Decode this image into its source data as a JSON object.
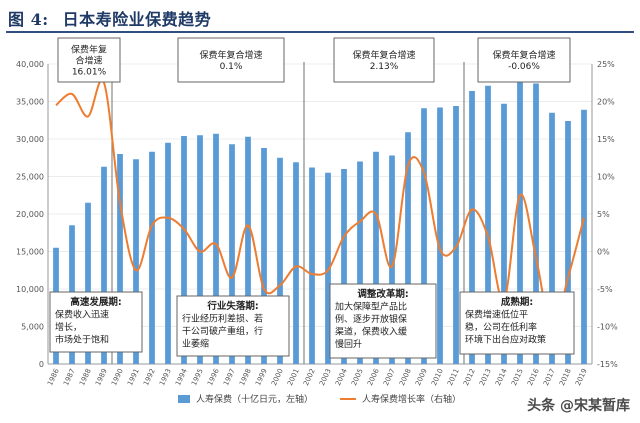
{
  "figure": {
    "label": "图 4:",
    "title": "日本寿险业保费趋势",
    "watermark": "头条 @宋某暂库"
  },
  "chart_data": {
    "type": "bar+line",
    "categories": [
      "1986",
      "1987",
      "1988",
      "1989",
      "1990",
      "1991",
      "1992",
      "1993",
      "1994",
      "1995",
      "1996",
      "1997",
      "1998",
      "1999",
      "2000",
      "2001",
      "2002",
      "2003",
      "2004",
      "2005",
      "2006",
      "2007",
      "2008",
      "2009",
      "2010",
      "2011",
      "2012",
      "2013",
      "2014",
      "2015",
      "2016",
      "2017",
      "2018",
      "2019"
    ],
    "series": [
      {
        "name": "人寿保费（十亿日元，左轴）",
        "axis": "left",
        "type": "bar",
        "color": "#5b9bd5",
        "values": [
          15500,
          18500,
          21500,
          26300,
          28000,
          27300,
          28300,
          29500,
          30400,
          30500,
          30700,
          29300,
          30300,
          28800,
          27500,
          26900,
          26200,
          25500,
          26000,
          27000,
          28300,
          27800,
          30900,
          34100,
          34200,
          34400,
          36400,
          37100,
          34700,
          37700,
          37400,
          33500,
          32400,
          33900
        ]
      },
      {
        "name": "人寿保费增长率（右轴）",
        "axis": "right",
        "type": "line",
        "color": "#ed7d31",
        "values": [
          19.5,
          21,
          18,
          22.5,
          6.5,
          -2.5,
          3.5,
          4.5,
          3,
          0,
          1,
          -3.5,
          3.5,
          -5,
          -4.5,
          -2,
          -3,
          -2.5,
          2,
          4,
          5,
          -2,
          11.5,
          10.5,
          0.3,
          0.6,
          5.6,
          2,
          -6.5,
          7.5,
          -0.8,
          -10.5,
          -3.5,
          4.5
        ]
      }
    ],
    "y_left": {
      "min": 0,
      "max": 40000,
      "ticks": [
        "0",
        "5,000",
        "10,000",
        "15,000",
        "20,000",
        "25,000",
        "30,000",
        "35,000",
        "40,000"
      ]
    },
    "y_right": {
      "min": -15,
      "max": 25,
      "ticks": [
        "-15%",
        "-10%",
        "-5%",
        "0%",
        "5%",
        "10%",
        "15%",
        "20%",
        "25%"
      ]
    },
    "period_dividers_after": [
      "1989",
      "2001",
      "2011"
    ],
    "top_annotations": [
      {
        "lines": [
          "保费年复",
          "合增速",
          "16.01%"
        ]
      },
      {
        "lines": [
          "保费年复合增速",
          "0.1%"
        ]
      },
      {
        "lines": [
          "保费年复合增速",
          "2.13%"
        ]
      },
      {
        "lines": [
          "保费年复合增速",
          "-0.06%"
        ]
      }
    ],
    "bottom_annotations": [
      {
        "lines": [
          "高速发展期:",
          "保费收入迅速",
          "增长，",
          "市场处于饱和"
        ]
      },
      {
        "lines": [
          "行业失落期:",
          "行业经历利差损、若",
          "干公司破产重组，行",
          "业萎缩"
        ]
      },
      {
        "lines": [
          "调整改革期:",
          "加大保障型产品比",
          "例、逐步开放银保",
          "渠道，保费收入缓",
          "慢回升"
        ]
      },
      {
        "lines": [
          "成熟期:",
          "保费增速低位平",
          "稳，公司在低利率",
          "环境下出台应对政策"
        ]
      }
    ],
    "legend": [
      "人寿保费（十亿日元，左轴）",
      "人寿保费增长率（右轴）"
    ]
  }
}
